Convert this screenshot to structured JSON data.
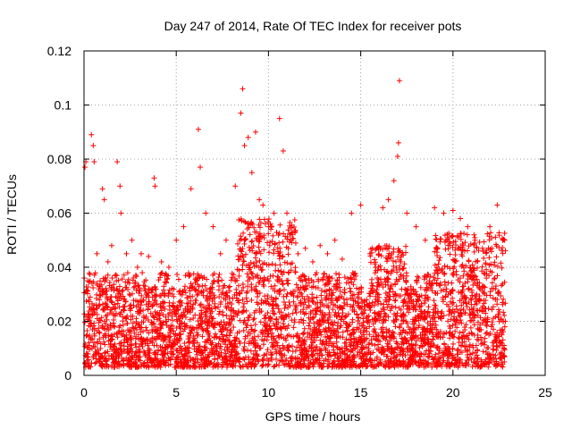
{
  "chart_data": {
    "type": "scatter",
    "title": "Day 247 of 2014, Rate Of TEC Index for receiver pots",
    "xlabel": "GPS time / hours",
    "ylabel": "ROTI / TECUs",
    "xlim": [
      0,
      25
    ],
    "ylim": [
      0,
      0.12
    ],
    "xticks": [
      0,
      5,
      10,
      15,
      20,
      25
    ],
    "xtick_labels": [
      "0",
      "5",
      "10",
      "15",
      "20",
      "25"
    ],
    "yticks": [
      0,
      0.02,
      0.04,
      0.06,
      0.08,
      0.1,
      0.12
    ],
    "ytick_labels": [
      "0",
      "0.02",
      "0.04",
      "0.06",
      "0.08",
      "0.1",
      "0.12"
    ],
    "grid": true,
    "marker": "+",
    "color": "#ff0000",
    "series": [
      {
        "name": "ROTI",
        "x": [
          0.05,
          0.1,
          0.2,
          0.4,
          0.5,
          0.55,
          0.7,
          1.0,
          1.1,
          1.3,
          1.5,
          1.8,
          1.95,
          2.0,
          2.3,
          2.6,
          2.9,
          3.1,
          3.5,
          3.8,
          3.85,
          4.2,
          4.6,
          5.0,
          5.4,
          5.8,
          6.2,
          6.3,
          6.6,
          7.0,
          7.4,
          7.7,
          8.2,
          8.5,
          8.6,
          8.7,
          8.9,
          9.1,
          9.3,
          9.5,
          9.7,
          10.0,
          10.3,
          10.6,
          10.8,
          11.0,
          11.2,
          11.6,
          12.0,
          12.4,
          12.8,
          13.2,
          13.6,
          14.0,
          14.5,
          15.0,
          15.5,
          15.8,
          16.2,
          16.5,
          16.8,
          17.0,
          17.05,
          17.1,
          17.5,
          18.0,
          18.5,
          19.0,
          19.5,
          20.0,
          20.4,
          20.8,
          21.2,
          21.6,
          22.0,
          22.4,
          22.7
        ],
        "y": [
          0.077,
          0.079,
          0.035,
          0.089,
          0.085,
          0.079,
          0.045,
          0.069,
          0.065,
          0.042,
          0.048,
          0.079,
          0.07,
          0.06,
          0.045,
          0.05,
          0.04,
          0.045,
          0.044,
          0.073,
          0.07,
          0.042,
          0.04,
          0.05,
          0.055,
          0.069,
          0.091,
          0.077,
          0.06,
          0.055,
          0.045,
          0.05,
          0.07,
          0.097,
          0.106,
          0.085,
          0.088,
          0.075,
          0.09,
          0.065,
          0.063,
          0.055,
          0.06,
          0.095,
          0.083,
          0.06,
          0.05,
          0.045,
          0.047,
          0.042,
          0.048,
          0.045,
          0.05,
          0.043,
          0.06,
          0.063,
          0.045,
          0.04,
          0.062,
          0.065,
          0.072,
          0.081,
          0.086,
          0.109,
          0.06,
          0.055,
          0.05,
          0.062,
          0.06,
          0.061,
          0.058,
          0.055,
          0.05,
          0.047,
          0.055,
          0.063,
          0.05
        ]
      }
    ]
  }
}
